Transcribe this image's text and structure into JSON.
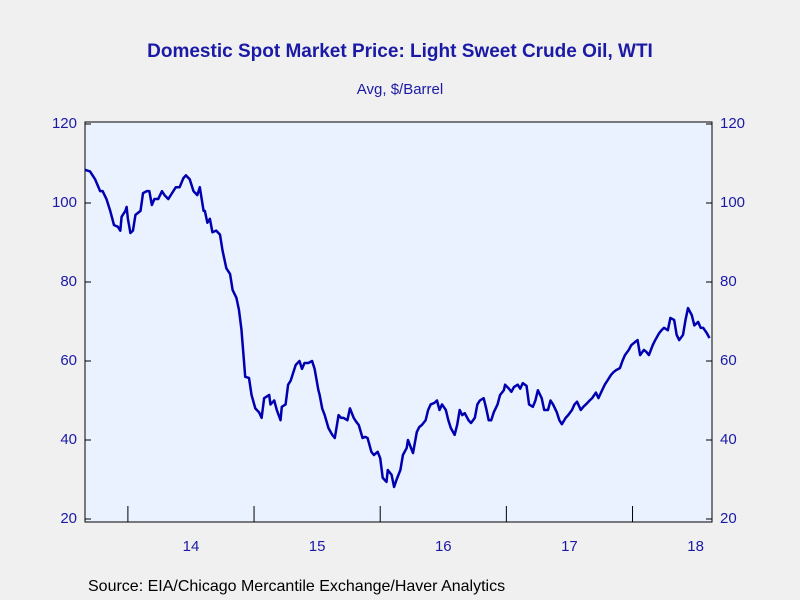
{
  "chart_data": {
    "type": "line",
    "title": "Domestic Spot Market Price: Light Sweet Crude Oil, WTI",
    "subtitle": "Avg, $/Barrel",
    "source": "Source:  EIA/Chicago Mercantile Exchange/Haver Analytics",
    "color": "#0000b0",
    "x": [
      2013.66,
      2013.7,
      2013.74,
      2013.78,
      2013.8,
      2013.83,
      2013.86,
      2013.89,
      2013.92,
      2013.94,
      2013.95,
      2013.98,
      2013.99,
      2014.0,
      2014.02,
      2014.04,
      2014.06,
      2014.1,
      2014.12,
      2014.15,
      2014.17,
      2014.19,
      2014.21,
      2014.24,
      2014.27,
      2014.29,
      2014.32,
      2014.35,
      2014.38,
      2014.41,
      2014.44,
      2014.46,
      2014.49,
      2014.52,
      2014.55,
      2014.57,
      2014.6,
      2014.61,
      2014.63,
      2014.65,
      2014.67,
      2014.7,
      2014.73,
      2014.75,
      2014.78,
      2014.81,
      2014.83,
      2014.86,
      2014.88,
      2014.9,
      2014.93,
      2014.96,
      2014.98,
      2015.01,
      2015.04,
      2015.06,
      2015.08,
      2015.1,
      2015.12,
      2015.13,
      2015.16,
      2015.18,
      2015.21,
      2015.22,
      2015.25,
      2015.27,
      2015.29,
      2015.31,
      2015.33,
      2015.36,
      2015.38,
      2015.4,
      2015.43,
      2015.46,
      2015.48,
      2015.51,
      2015.52,
      2015.54,
      2015.56,
      2015.59,
      2015.62,
      2015.64,
      2015.67,
      2015.69,
      2015.71,
      2015.74,
      2015.76,
      2015.79,
      2015.81,
      2015.83,
      2015.86,
      2015.88,
      2015.9,
      2015.93,
      2015.95,
      2015.98,
      2016.0,
      2016.02,
      2016.05,
      2016.06,
      2016.09,
      2016.11,
      2016.13,
      2016.16,
      2016.18,
      2016.21,
      2016.22,
      2016.25,
      2016.26,
      2016.29,
      2016.31,
      2016.33,
      2016.36,
      2016.38,
      2016.4,
      2016.43,
      2016.45,
      2016.47,
      2016.49,
      2016.52,
      2016.54,
      2016.56,
      2016.59,
      2016.61,
      2016.63,
      2016.65,
      2016.67,
      2016.7,
      2016.72,
      2016.75,
      2016.77,
      2016.79,
      2016.82,
      2016.84,
      2016.86,
      2016.88,
      2016.9,
      2016.93,
      2016.95,
      2016.98,
      2016.99,
      2017.02,
      2017.04,
      2017.06,
      2017.09,
      2017.11,
      2017.13,
      2017.16,
      2017.18,
      2017.21,
      2017.23,
      2017.25,
      2017.28,
      2017.3,
      2017.33,
      2017.35,
      2017.37,
      2017.4,
      2017.42,
      2017.44,
      2017.47,
      2017.49,
      2017.52,
      2017.54,
      2017.56,
      2017.59,
      2017.61,
      2017.63,
      2017.66,
      2017.68,
      2017.71,
      2017.73,
      2017.75,
      2017.78,
      2017.8,
      2017.83,
      2017.85,
      2017.87,
      2017.9,
      2017.92,
      2017.94,
      2017.97,
      2017.99,
      2018.02,
      2018.04,
      2018.06,
      2018.09,
      2018.11,
      2018.13,
      2018.16,
      2018.18,
      2018.21,
      2018.23,
      2018.25,
      2018.28,
      2018.3,
      2018.33,
      2018.35,
      2018.37,
      2018.4,
      2018.42,
      2018.44,
      2018.47,
      2018.49,
      2018.52,
      2018.54,
      2018.56,
      2018.59,
      2018.61
    ],
    "values": [
      108.4,
      108,
      106,
      103,
      103,
      101,
      98,
      94.4,
      94,
      93,
      96.5,
      98,
      99,
      96,
      92.4,
      93,
      97,
      98,
      102.5,
      103,
      103,
      99.5,
      101,
      101,
      103,
      102,
      101,
      102.5,
      104,
      104,
      106.3,
      107,
      106,
      103,
      102,
      104,
      98,
      98,
      95,
      96,
      92.6,
      93,
      92,
      88,
      83.5,
      82,
      78,
      76,
      73,
      68,
      56,
      55.7,
      51.4,
      48,
      47,
      45.6,
      50.6,
      51,
      51.4,
      49,
      50,
      47.6,
      45,
      48.4,
      49,
      54,
      55,
      57,
      59,
      60,
      58,
      59.5,
      59.5,
      60,
      58,
      52.6,
      51.4,
      48,
      46.3,
      43,
      41.3,
      40.5,
      46.3,
      45.6,
      45.6,
      45,
      48,
      45.6,
      44.6,
      43.8,
      40.5,
      40.8,
      40.5,
      37,
      36.2,
      37,
      35.4,
      30.4,
      29.4,
      32.4,
      31.2,
      28.1,
      30,
      32.4,
      36.2,
      38,
      40,
      37.5,
      36.7,
      42,
      43.3,
      43.8,
      45,
      47.6,
      49,
      49.4,
      50,
      47.6,
      49,
      47.6,
      45,
      43,
      41.3,
      43.8,
      47.6,
      46.3,
      46.8,
      45,
      44.3,
      45.6,
      49,
      50,
      50.6,
      48,
      45,
      45,
      47,
      49,
      51.4,
      52.6,
      54,
      53,
      52.2,
      53.4,
      54,
      53,
      54.4,
      53.7,
      49,
      48.4,
      50,
      52.6,
      50.6,
      47.6,
      47.6,
      50,
      49,
      47,
      45,
      44,
      45.6,
      46.3,
      47.6,
      49,
      49.7,
      47.6,
      48.4,
      49,
      50,
      50.6,
      52,
      50.6,
      52,
      54,
      55,
      56.5,
      57.2,
      57.7,
      58.2,
      60,
      61.5,
      62.8,
      64,
      64.8,
      65.3,
      61.5,
      62.8,
      62.3,
      61.5,
      64,
      65.3,
      67,
      67.8,
      68.4,
      67.8,
      70.9,
      70.4,
      66.6,
      65.3,
      66.6,
      70.4,
      73.4,
      71.6,
      69,
      69.9,
      68.4,
      68.4,
      67,
      65.8
    ],
    "xlim": [
      2013.66,
      2018.63
    ],
    "xticks": [
      {
        "value": 2014,
        "label": "14"
      },
      {
        "value": 2015,
        "label": "15"
      },
      {
        "value": 2016,
        "label": "16"
      },
      {
        "value": 2017,
        "label": "17"
      },
      {
        "value": 2018,
        "label": "18"
      }
    ],
    "ylim": [
      20,
      120
    ],
    "yticks": [
      20,
      40,
      60,
      80,
      100,
      120
    ],
    "y2lim": [
      20,
      120
    ],
    "y2ticks": [
      20,
      40,
      60,
      80,
      100,
      120
    ],
    "grid": false
  }
}
